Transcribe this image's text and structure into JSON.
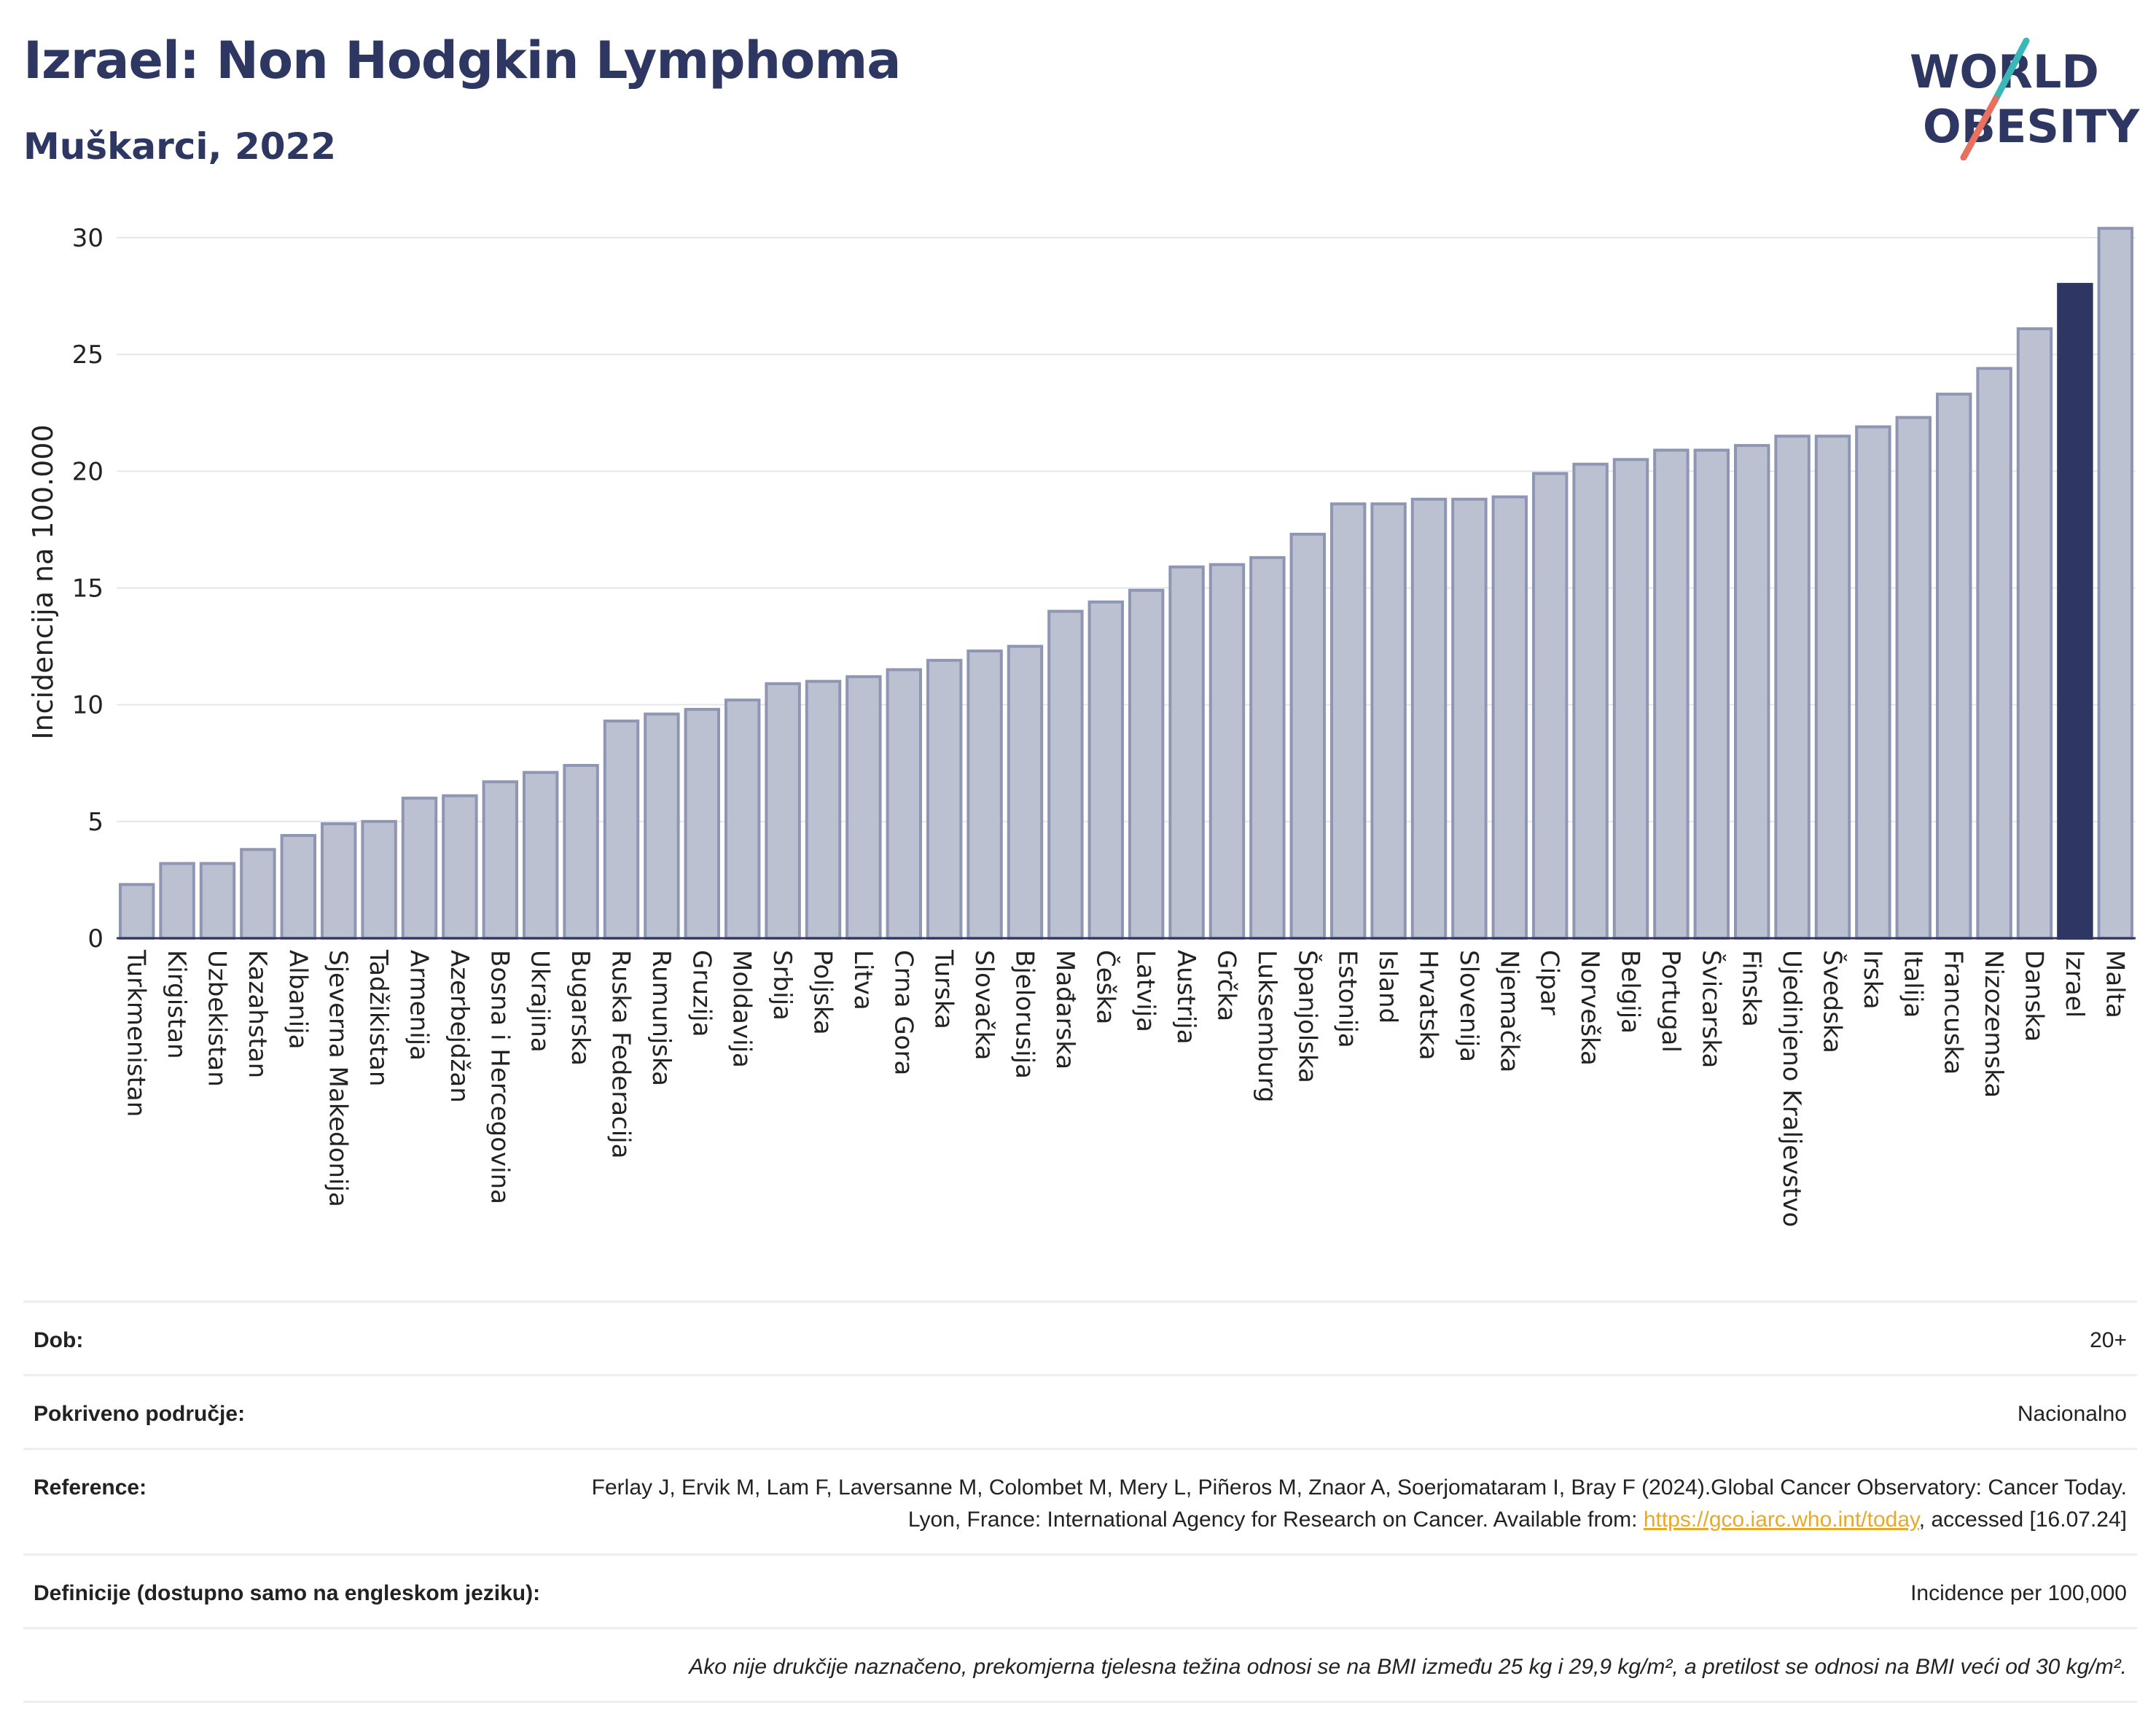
{
  "header": {
    "title": "Izrael: Non Hodgkin Lymphoma",
    "subtitle": "Muškarci, 2022"
  },
  "logo": {
    "line1": "WORLD",
    "line2": "OBESITY",
    "accent_colors": [
      "#3bb7b7",
      "#e8705f"
    ]
  },
  "colors": {
    "bar": "#bcc1d1",
    "bar_border": "#8e96b3",
    "highlight": "#2d3761",
    "grid": "#e4e6ee",
    "axis": "#2d3761"
  },
  "chart_data": {
    "type": "bar",
    "ylabel": "Incidencija na 100.000",
    "ylim": [
      0,
      30.5
    ],
    "yticks": [
      0,
      5,
      10,
      15,
      20,
      25,
      30
    ],
    "highlight": "Izrael",
    "categories": [
      "Turkmenistan",
      "Kirgistan",
      "Uzbekistan",
      "Kazahstan",
      "Albanija",
      "Sjeverna Makedonija",
      "Tadžikistan",
      "Armenija",
      "Azerbejdžan",
      "Bosna i Hercegovina",
      "Ukrajina",
      "Bugarska",
      "Ruska Federacija",
      "Rumunjska",
      "Gruzija",
      "Moldavija",
      "Srbija",
      "Poljska",
      "Litva",
      "Crna Gora",
      "Turska",
      "Slovačka",
      "Bjelorusija",
      "Mađarska",
      "Češka",
      "Latvija",
      "Austrija",
      "Grčka",
      "Luksemburg",
      "Španjolska",
      "Estonija",
      "Island",
      "Hrvatska",
      "Slovenija",
      "Njemačka",
      "Cipar",
      "Norveška",
      "Belgija",
      "Portugal",
      "Švicarska",
      "Finska",
      "Ujedinjeno Kraljevstvo",
      "Švedska",
      "Irska",
      "Italija",
      "Francuska",
      "Nizozemska",
      "Danska",
      "Izrael",
      "Malta"
    ],
    "values": [
      2.3,
      3.2,
      3.2,
      3.8,
      4.4,
      4.9,
      5.0,
      6.0,
      6.1,
      6.7,
      7.1,
      7.4,
      9.3,
      9.6,
      9.8,
      10.2,
      10.9,
      11.0,
      11.2,
      11.5,
      11.9,
      12.3,
      12.5,
      14.0,
      14.4,
      14.9,
      15.9,
      16.0,
      16.3,
      17.3,
      18.6,
      18.6,
      18.8,
      18.8,
      18.9,
      19.9,
      20.3,
      20.5,
      20.9,
      20.9,
      21.1,
      21.5,
      21.5,
      21.9,
      22.3,
      23.3,
      24.4,
      26.1,
      28.0,
      30.4
    ]
  },
  "info": {
    "rows": [
      {
        "key": "Dob:",
        "value": "20+"
      },
      {
        "key": "Pokriveno područje:",
        "value": "Nacionalno"
      },
      {
        "key": "Reference:",
        "value_pre": "Ferlay J, Ervik M, Lam F, Laversanne M, Colombet M, Mery L, Piñeros M, Znaor A, Soerjomataram I, Bray F (2024).Global Cancer Observatory: Cancer Today. Lyon, France: International Agency for Research on Cancer. Available from: ",
        "link": "https://gco.iarc.who.int/today",
        "value_post": ", accessed [16.07.24]"
      },
      {
        "key": "Definicije (dostupno samo na engleskom jeziku):",
        "value": "Incidence per 100,000"
      }
    ],
    "note": "Ako nije drukčije naznačeno, prekomjerna tjelesna težina odnosi se na BMI između 25 kg i 29,9 kg/m², a pretilost se odnosi na BMI veći od 30 kg/m²."
  }
}
